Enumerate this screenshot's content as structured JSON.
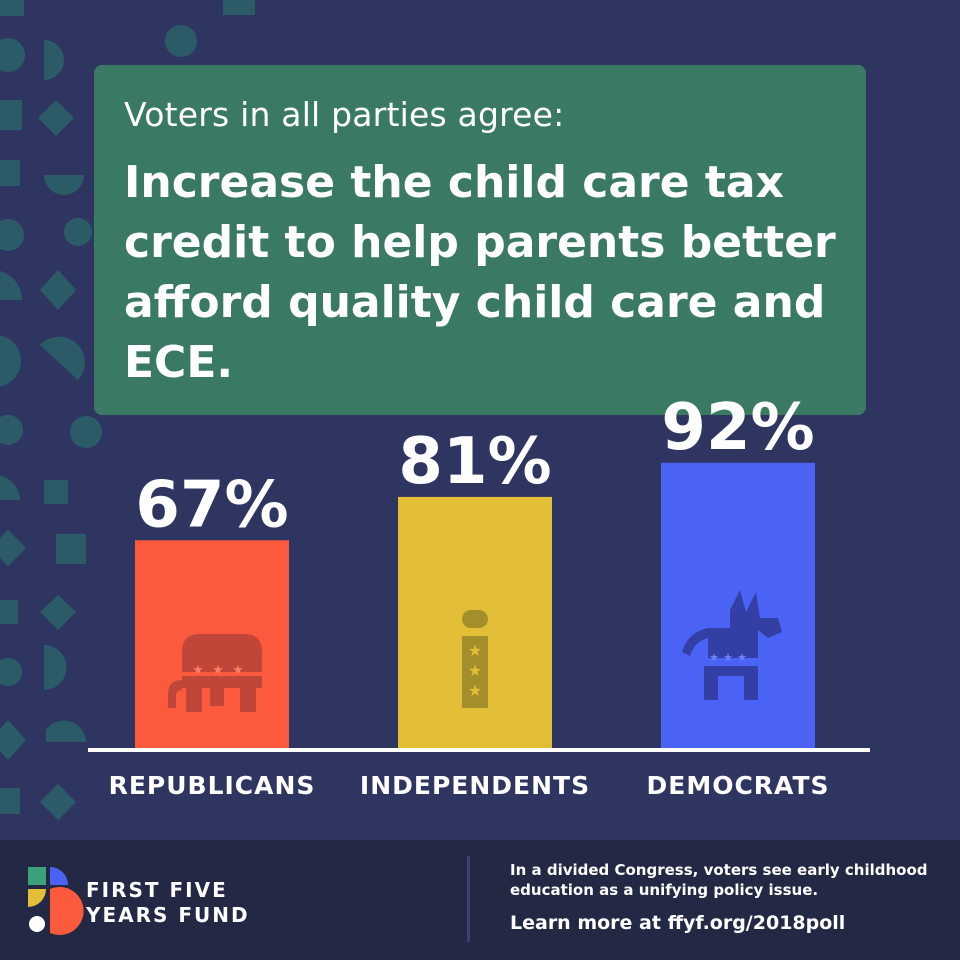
{
  "headline": {
    "subtitle": "Voters in all parties agree:",
    "title": "Increase the child care tax credit to help parents better afford quality child care and ECE."
  },
  "chart_data": {
    "type": "bar",
    "categories": [
      "REPUBLICANS",
      "INDEPENDENTS",
      "DEMOCRATS"
    ],
    "values": [
      67,
      81,
      92
    ],
    "value_labels": [
      "67%",
      "81%",
      "92%"
    ],
    "colors": [
      "#fb5a3c",
      "#e2bf37",
      "#4a63f5"
    ],
    "icon_colors": [
      "#c0463a",
      "#a48e2a",
      "#343fa5"
    ],
    "icons": [
      "elephant-icon",
      "independent-i-icon",
      "donkey-icon"
    ],
    "ylim": [
      0,
      100
    ],
    "baseline_color": "#ffffff"
  },
  "footer": {
    "brand": "FIRST FIVE YEARS FUND",
    "tagline": "In a divided Congress, voters see early childhood education as a unifying policy issue.",
    "cta": "Learn more at ffyf.org/2018poll"
  },
  "colors": {
    "background": "#2f3561",
    "headline_box": "#3a7a62",
    "footer": "#232845",
    "decoration": "#2c5a6a"
  }
}
